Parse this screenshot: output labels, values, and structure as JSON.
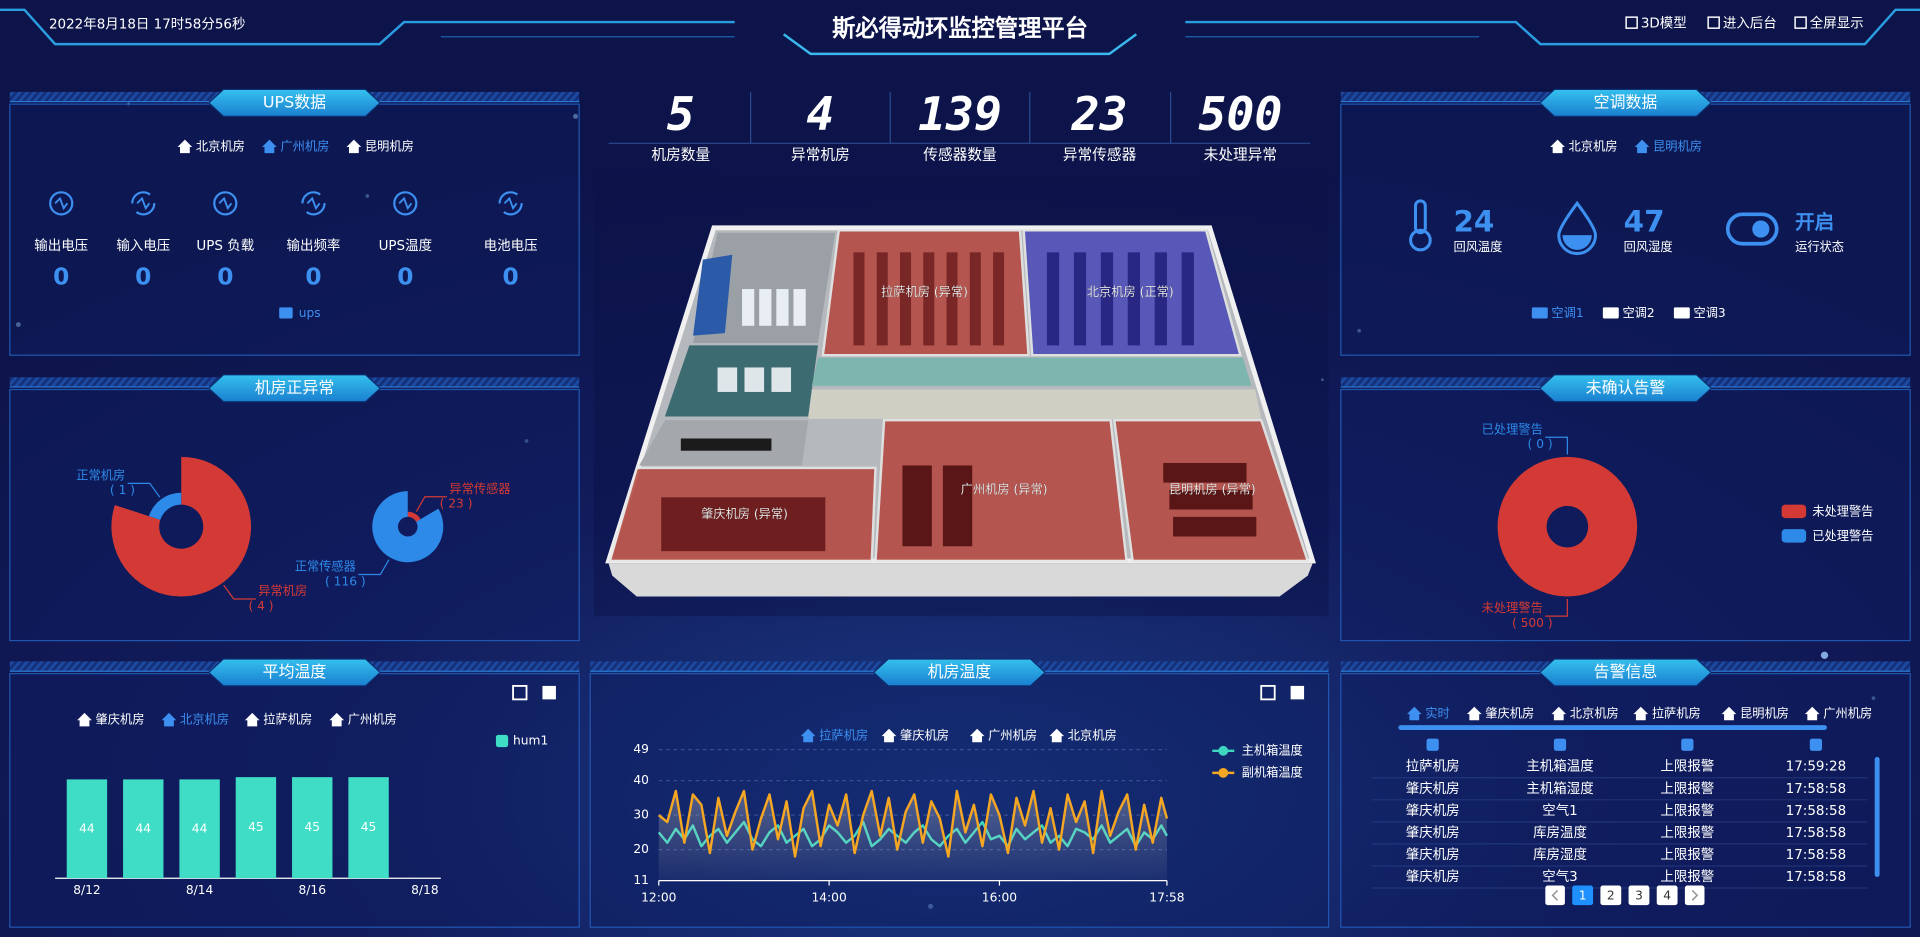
{
  "header": {
    "datetime": "2022年8月18日 17时58分56秒",
    "title": "斯必得动环监控管理平台",
    "buttons": [
      "3D模型",
      "进入后台",
      "全屏显示"
    ]
  },
  "stats": [
    {
      "value": 5,
      "label": "机房数量"
    },
    {
      "value": 4,
      "label": "异常机房"
    },
    {
      "value": 139,
      "label": "传感器数量"
    },
    {
      "value": 23,
      "label": "异常传感器"
    },
    {
      "value": 500,
      "label": "未处理异常"
    }
  ],
  "ups": {
    "title": "UPS数据",
    "tabs": [
      {
        "label": "北京机房"
      },
      {
        "label": "广州机房",
        "active": true
      },
      {
        "label": "昆明机房"
      }
    ],
    "items": [
      {
        "label": "输出电压",
        "value": 0
      },
      {
        "label": "输入电压",
        "value": 0
      },
      {
        "label": "UPS 负载",
        "value": 0
      },
      {
        "label": "输出频率",
        "value": 0
      },
      {
        "label": "UPS温度",
        "value": 0
      },
      {
        "label": "电池电压",
        "value": 0
      }
    ],
    "device": "ups"
  },
  "air_conditioning": {
    "title": "空调数据",
    "tabs": [
      {
        "label": "北京机房"
      },
      {
        "label": "昆明机房",
        "active": true
      }
    ],
    "items": [
      {
        "value": 24,
        "label": "回风温度"
      },
      {
        "value": 47,
        "label": "回风湿度"
      },
      {
        "value": "开启",
        "label": "运行状态"
      }
    ],
    "units": [
      {
        "label": "空调1",
        "active": true
      },
      {
        "label": "空调2"
      },
      {
        "label": "空调3"
      }
    ]
  },
  "floorplan": {
    "rooms": [
      {
        "label": "拉萨机房 (异常)",
        "color": "#b4463c"
      },
      {
        "label": "北京机房 (正常)",
        "color": "#4848b8"
      },
      {
        "label": "肇庆机房 (异常)",
        "color": "#b4463c"
      },
      {
        "label": "广州机房 (异常)",
        "color": "#b4463c"
      },
      {
        "label": "昆明机房 (异常)",
        "color": "#b4463c"
      }
    ]
  },
  "alarms": {
    "title": "告警信息",
    "tabs": [
      {
        "label": "实时",
        "active": true
      },
      {
        "label": "肇庆机房"
      },
      {
        "label": "北京机房"
      },
      {
        "label": "拉萨机房"
      },
      {
        "label": "昆明机房"
      },
      {
        "label": "广州机房"
      }
    ],
    "rows": [
      [
        "拉萨机房",
        "主机箱温度",
        "上限报警",
        "17:59:28"
      ],
      [
        "肇庆机房",
        "主机箱湿度",
        "上限报警",
        "17:58:58"
      ],
      [
        "肇庆机房",
        "空气1",
        "上限报警",
        "17:58:58"
      ],
      [
        "肇庆机房",
        "库房温度",
        "上限报警",
        "17:58:58"
      ],
      [
        "肇庆机房",
        "库房湿度",
        "上限报警",
        "17:58:58"
      ],
      [
        "肇庆机房",
        "空气3",
        "上限报警",
        "17:58:58"
      ]
    ],
    "pages": [
      {
        "label": 1,
        "active": true
      },
      {
        "label": 2
      },
      {
        "label": 3
      },
      {
        "label": 4
      }
    ]
  },
  "chart_data": [
    {
      "type": "pie",
      "title": "机房正异常",
      "rose": true,
      "pies": [
        {
          "categories": [
            "异常机房",
            "正常机房"
          ],
          "values": [
            4,
            1
          ],
          "value_labels": [
            "( 4 )",
            "( 1 )"
          ],
          "colors": [
            "#d43a35",
            "#2d8ae8"
          ]
        },
        {
          "categories": [
            "异常传感器",
            "正常传感器"
          ],
          "values": [
            23,
            116
          ],
          "value_labels": [
            "( 23 )",
            "( 116 )"
          ],
          "colors": [
            "#d43a35",
            "#2d8ae8"
          ]
        }
      ]
    },
    {
      "type": "pie",
      "title": "未确认告警",
      "rose": false,
      "legend": "right",
      "pies": [
        {
          "categories": [
            "未处理警告",
            "已处理警告"
          ],
          "values": [
            500,
            0
          ],
          "value_labels": [
            "( 500 )",
            "( 0 )"
          ],
          "colors": [
            "#d43a35",
            "#2d8ae8"
          ]
        }
      ]
    },
    {
      "type": "bar",
      "title": "平均温度",
      "tabs": [
        {
          "label": "肇庆机房"
        },
        {
          "label": "北京机房",
          "active": true
        },
        {
          "label": "拉萨机房"
        },
        {
          "label": "广州机房"
        }
      ],
      "categories": [
        "8/12",
        null,
        "8/14",
        null,
        "8/16",
        null,
        "8/18"
      ],
      "series": [
        {
          "name": "hum1",
          "color": "#3fdcc6",
          "values": [
            44,
            44,
            44,
            45,
            45,
            45,
            null
          ]
        }
      ],
      "ylim": [
        0,
        60
      ]
    },
    {
      "type": "line",
      "title": "机房温度",
      "tabs": [
        {
          "label": "拉萨机房",
          "active": true
        },
        {
          "label": "肇庆机房"
        },
        {
          "label": "广州机房"
        },
        {
          "label": "北京机房"
        }
      ],
      "x": [
        "12:00",
        "12:06",
        "12:12",
        "12:18",
        "12:24",
        "12:30",
        "12:36",
        "12:42",
        "12:48",
        "12:54",
        "13:00",
        "13:06",
        "13:12",
        "13:18",
        "13:24",
        "13:30",
        "13:36",
        "13:42",
        "13:48",
        "13:54",
        "14:00",
        "14:06",
        "14:12",
        "14:18",
        "14:24",
        "14:30",
        "14:36",
        "14:42",
        "14:48",
        "14:54",
        "15:00",
        "15:06",
        "15:12",
        "15:18",
        "15:24",
        "15:30",
        "15:36",
        "15:42",
        "15:48",
        "15:54",
        "16:00",
        "16:06",
        "16:12",
        "16:18",
        "16:24",
        "16:30",
        "16:36",
        "16:42",
        "16:48",
        "16:54",
        "17:00",
        "17:06",
        "17:12",
        "17:18",
        "17:24",
        "17:30",
        "17:36",
        "17:42",
        "17:48",
        "17:54",
        "17:58"
      ],
      "xlim": [
        "12:00",
        "17:58"
      ],
      "xticks": [
        "12:00",
        "14:00",
        "16:00",
        "17:58"
      ],
      "ylim": [
        11,
        49
      ],
      "yticks": [
        11,
        20,
        30,
        40,
        49
      ],
      "grid": true,
      "series": [
        {
          "name": "主机箱温度",
          "color": "#3dd6c0",
          "values": [
            25,
            22,
            26,
            23,
            27,
            21,
            24,
            26,
            22,
            25,
            28,
            23,
            21,
            25,
            27,
            22,
            24,
            26,
            21,
            23,
            27,
            25,
            22,
            24,
            28,
            21,
            23,
            26,
            24,
            22,
            25,
            27,
            23,
            21,
            24,
            26,
            22,
            25,
            28,
            23,
            24,
            21,
            26,
            23,
            25,
            27,
            22,
            24,
            21,
            26,
            25,
            23,
            27,
            22,
            24,
            26,
            21,
            25,
            23,
            27,
            24
          ]
        },
        {
          "name": "副机箱温度",
          "color": "#f5a623",
          "area": true,
          "values": [
            30,
            28,
            37,
            22,
            36,
            33,
            19,
            35,
            24,
            31,
            37,
            20,
            29,
            36,
            23,
            34,
            18,
            32,
            37,
            21,
            33,
            27,
            36,
            19,
            30,
            37,
            24,
            35,
            20,
            31,
            36,
            22,
            34,
            29,
            18,
            37,
            25,
            33,
            21,
            36,
            30,
            19,
            35,
            27,
            37,
            22,
            32,
            20,
            36,
            28,
            34,
            19,
            37,
            24,
            31,
            36,
            20,
            33,
            22,
            35,
            29
          ]
        }
      ]
    }
  ]
}
